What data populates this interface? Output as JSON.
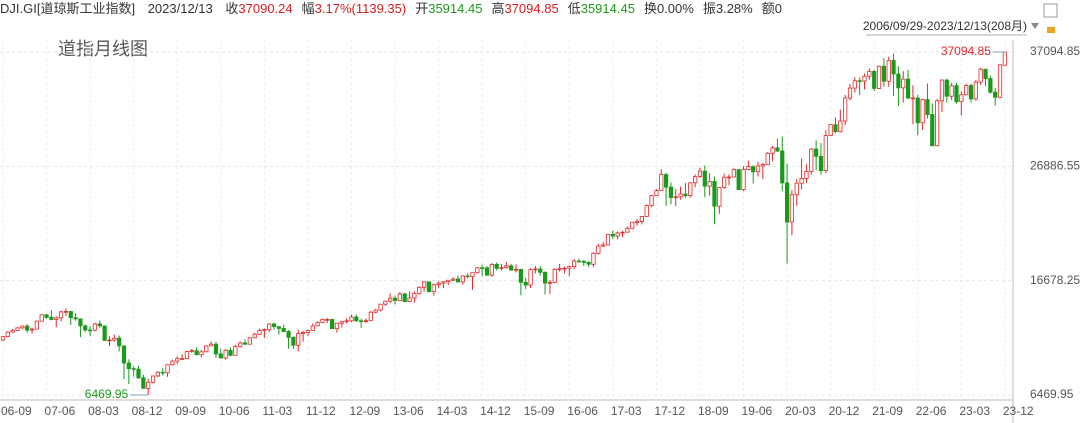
{
  "header": {
    "symbol": "DJI.GI[道琼斯工业指数]",
    "date": "2023/12/13",
    "items": [
      {
        "label": "收",
        "value": "37090.24",
        "color": "#d42020"
      },
      {
        "label": "幅",
        "value": "3.17%(1139.35)",
        "color": "#d42020"
      },
      {
        "label": "开",
        "value": "35914.45",
        "color": "#1a9a1a"
      },
      {
        "label": "高",
        "value": "37094.85",
        "color": "#d42020"
      },
      {
        "label": "低",
        "value": "35914.45",
        "color": "#1a9a1a"
      },
      {
        "label": "换",
        "value": "0.00%",
        "color": "#333333"
      },
      {
        "label": "振",
        "value": "3.28%",
        "color": "#333333"
      },
      {
        "label": "额",
        "value": "0",
        "color": "#333333"
      }
    ],
    "range": "2006/09/29-2023/12/13(208月)"
  },
  "chart_data": {
    "type": "candlestick",
    "title": "道指月线图",
    "up_color": "#e02828",
    "down_color": "#1a9a1a",
    "grid": true,
    "ylim": [
      6469.95,
      37094.85
    ],
    "yticks": [
      37094.85,
      26886.55,
      16678.25,
      6469.95
    ],
    "categories": [
      "06-09",
      null,
      null,
      null,
      null,
      null,
      null,
      null,
      null,
      "07-06",
      null,
      null,
      null,
      null,
      null,
      null,
      null,
      null,
      "08-03",
      null,
      null,
      null,
      null,
      null,
      null,
      null,
      null,
      "08-12",
      null,
      null,
      null,
      null,
      null,
      null,
      null,
      null,
      "09-09",
      null,
      null,
      null,
      null,
      null,
      null,
      null,
      null,
      "10-06",
      null,
      null,
      null,
      null,
      null,
      null,
      null,
      null,
      "11-03",
      null,
      null,
      null,
      null,
      null,
      null,
      null,
      null,
      "11-12",
      null,
      null,
      null,
      null,
      null,
      null,
      null,
      null,
      "12-09",
      null,
      null,
      null,
      null,
      null,
      null,
      null,
      null,
      "13-06",
      null,
      null,
      null,
      null,
      null,
      null,
      null,
      null,
      "14-03",
      null,
      null,
      null,
      null,
      null,
      null,
      null,
      null,
      "14-12",
      null,
      null,
      null,
      null,
      null,
      null,
      null,
      null,
      "15-09",
      null,
      null,
      null,
      null,
      null,
      null,
      null,
      null,
      "16-06",
      null,
      null,
      null,
      null,
      null,
      null,
      null,
      null,
      "17-03",
      null,
      null,
      null,
      null,
      null,
      null,
      null,
      null,
      "17-12",
      null,
      null,
      null,
      null,
      null,
      null,
      null,
      null,
      "18-09",
      null,
      null,
      null,
      null,
      null,
      null,
      null,
      null,
      "19-06",
      null,
      null,
      null,
      null,
      null,
      null,
      null,
      null,
      "20-03",
      null,
      null,
      null,
      null,
      null,
      null,
      null,
      null,
      "20-12",
      null,
      null,
      null,
      null,
      null,
      null,
      null,
      null,
      "21-09",
      null,
      null,
      null,
      null,
      null,
      null,
      null,
      null,
      "22-06",
      null,
      null,
      null,
      null,
      null,
      null,
      null,
      null,
      "23-03",
      null,
      null,
      null,
      null,
      null,
      null,
      null,
      null,
      "23-12"
    ],
    "open": [
      11381,
      11679,
      12081,
      12222,
      12463,
      12622,
      12269,
      12354,
      13063,
      13628,
      13409,
      13212,
      13358,
      13896,
      13930,
      13372,
      13265,
      12650,
      12266,
      12263,
      12820,
      12638,
      11350,
      11378,
      11544,
      10851,
      9325,
      8829,
      8776,
      8001,
      7063,
      7609,
      8168,
      8500,
      8447,
      9172,
      9496,
      9712,
      9713,
      10345,
      10428,
      10067,
      10325,
      10857,
      11009,
      10137,
      9774,
      10466,
      10015,
      10788,
      11118,
      11006,
      11578,
      11892,
      12226,
      12320,
      12811,
      12570,
      12414,
      12143,
      11614,
      10913,
      11955,
      12046,
      12218,
      12633,
      12952,
      13212,
      13214,
      12393,
      12880,
      13009,
      13091,
      13437,
      13096,
      13026,
      13104,
      13861,
      14054,
      14579,
      14840,
      15116,
      14910,
      15500,
      14810,
      15130,
      15546,
      16086,
      16577,
      15699,
      16322,
      16458,
      16581,
      16717,
      16827,
      16563,
      17098,
      17043,
      17391,
      17828,
      17823,
      17165,
      18133,
      17776,
      17841,
      18011,
      17620,
      17690,
      16528,
      16285,
      17664,
      17720,
      17425,
      16466,
      16517,
      17685,
      17774,
      17787,
      17930,
      18432,
      18401,
      18308,
      18142,
      19124,
      19763,
      19864,
      20812,
      20663,
      20941,
      21009,
      21350,
      21891,
      21948,
      22405,
      23377,
      24272,
      24719,
      26149,
      25029,
      24103,
      24163,
      24416,
      24271,
      25415,
      25965,
      26458,
      25116,
      25538,
      23327,
      24999,
      25916,
      25929,
      26593,
      24815,
      26600,
      26864,
      26403,
      26917,
      27046,
      28051,
      28538,
      28256,
      25409,
      21917,
      24346,
      25383,
      25813,
      26428,
      28430,
      27782,
      26502,
      29638,
      30606,
      29983,
      30932,
      32982,
      33875,
      34529,
      34503,
      34935,
      35361,
      33844,
      35820,
      34484,
      36338,
      35132,
      33893,
      34678,
      32977,
      32990,
      30775,
      32845,
      31510,
      28726,
      32733,
      34590,
      33147,
      34086,
      32657,
      33274,
      34098,
      32908,
      34408,
      35560,
      34722,
      33508,
      33053,
      35914.45
    ],
    "high": [
      11727,
      12167,
      12361,
      12529,
      12686,
      12795,
      12488,
      13121,
      13692,
      13692,
      14022,
      13497,
      14000,
      14198,
      13973,
      13780,
      13279,
      12767,
      12622,
      12931,
      13136,
      12657,
      11698,
      11867,
      11791,
      10882,
      9654,
      9026,
      9088,
      8280,
      7925,
      8208,
      8588,
      8877,
      9197,
      9630,
      9918,
      10119,
      10406,
      10580,
      10729,
      10468,
      10907,
      11258,
      11205,
      10594,
      10581,
      10720,
      10948,
      11246,
      11452,
      11625,
      12020,
      12391,
      12419,
      12876,
      12950,
      12596,
      12753,
      12284,
      11717,
      12284,
      12180,
      12317,
      12841,
      13055,
      13290,
      13338,
      13279,
      12898,
      13088,
      13331,
      13653,
      13661,
      13289,
      13305,
      13970,
      14149,
      14585,
      14888,
      15542,
      15340,
      15658,
      15580,
      15709,
      15721,
      16174,
      16588,
      16589,
      16398,
      16588,
      16631,
      16736,
      16978,
      17152,
      17153,
      17350,
      17395,
      17895,
      18103,
      17951,
      18244,
      18289,
      18175,
      18351,
      18144,
      18137,
      17720,
      16933,
      17799,
      17977,
      17985,
      17510,
      16752,
      17790,
      18167,
      17935,
      18016,
      18622,
      18668,
      18534,
      18399,
      19225,
      19987,
      20126,
      20851,
      21169,
      21070,
      21112,
      21535,
      21929,
      22179,
      22420,
      23485,
      24327,
      24876,
      26617,
      26307,
      25449,
      24858,
      25087,
      25403,
      25462,
      26167,
      26770,
      26952,
      26277,
      25980,
      25053,
      26241,
      26155,
      26696,
      26660,
      26908,
      27398,
      26958,
      27306,
      27190,
      28175,
      28702,
      29374,
      29568,
      27102,
      24765,
      25758,
      27581,
      27071,
      28502,
      29199,
      28958,
      30117,
      30637,
      31272,
      31961,
      33259,
      34257,
      34837,
      34849,
      35172,
      35631,
      35510,
      35892,
      36566,
      36679,
      36953,
      35824,
      35372,
      35493,
      34118,
      33272,
      32910,
      34281,
      32504,
      32889,
      34639,
      34712,
      34342,
      34335,
      33572,
      34257,
      34257,
      34589,
      35679,
      35578,
      34979,
      33893,
      35987,
      37094.85
    ],
    "low": [
      11290,
      11653,
      12036,
      12194,
      12363,
      12050,
      11939,
      12354,
      13053,
      13266,
      13148,
      12518,
      13029,
      13522,
      12725,
      13098,
      11634,
      12118,
      11731,
      12160,
      12477,
      11287,
      10827,
      11221,
      10365,
      7882,
      7449,
      8118,
      7909,
      7062,
      6469.95,
      7490,
      8087,
      8221,
      8087,
      9112,
      9252,
      9678,
      9677,
      10236,
      10023,
      9836,
      10293,
      10847,
      9774,
      9758,
      9614,
      9936,
      9998,
      10711,
      10929,
      11008,
      11520,
      11827,
      11555,
      12093,
      12300,
      11862,
      12068,
      10604,
      10597,
      10362,
      11231,
      11735,
      12184,
      12629,
      12884,
      12911,
      12376,
      12035,
      12492,
      12855,
      12977,
      13006,
      12471,
      12883,
      13104,
      13784,
      13937,
      14434,
      14700,
      14551,
      14910,
      14760,
      14777,
      14719,
      15440,
      15703,
      15617,
      15340,
      16015,
      16015,
      16300,
      16659,
      16559,
      16333,
      16901,
      15855,
      17317,
      17067,
      17136,
      17037,
      17585,
      17593,
      17755,
      17575,
      17399,
      15370,
      15942,
      16013,
      17330,
      17138,
      15451,
      15504,
      16451,
      17484,
      17331,
      17063,
      17713,
      18285,
      17992,
      17883,
      17888,
      19019,
      19677,
      19830,
      20412,
      20379,
      20553,
      20994,
      21279,
      21600,
      21709,
      22380,
      23242,
      24242,
      24700,
      23360,
      23509,
      23344,
      23908,
      24077,
      24084,
      25010,
      25848,
      24122,
      24268,
      21713,
      22639,
      24884,
      25208,
      25900,
      24775,
      24680,
      26532,
      25339,
      25978,
      25743,
      27000,
      27325,
      28169,
      24681,
      18214,
      20735,
      23361,
      24843,
      25391,
      26137,
      26537,
      26143,
      26277,
      29611,
      29856,
      29900,
      30548,
      32787,
      33473,
      33271,
      33741,
      34613,
      33613,
      33785,
      34006,
      33991,
      33150,
      32273,
      32578,
      32913,
      30636,
      29653,
      30143,
      31158,
      28715,
      28660,
      31727,
      32573,
      32812,
      32500,
      31429,
      33235,
      32586,
      32741,
      34143,
      34029,
      33379,
      32327,
      32984,
      35914.45
    ],
    "close": [
      11679,
      12081,
      12222,
      12463,
      12622,
      12269,
      12354,
      13063,
      13628,
      13409,
      13212,
      13358,
      13896,
      13930,
      13372,
      13265,
      12650,
      12266,
      12263,
      12820,
      12638,
      11350,
      11378,
      11544,
      10851,
      9325,
      8829,
      8776,
      8001,
      7063,
      7609,
      8168,
      8500,
      8447,
      9172,
      9496,
      9712,
      9713,
      10345,
      10428,
      10067,
      10325,
      10857,
      11009,
      10137,
      9774,
      10466,
      10015,
      10788,
      11118,
      11006,
      11578,
      11892,
      12226,
      12320,
      12811,
      12570,
      12414,
      12143,
      11614,
      10913,
      11955,
      12046,
      12218,
      12633,
      12952,
      13212,
      13214,
      12393,
      12880,
      13009,
      13091,
      13437,
      13096,
      13026,
      13104,
      13861,
      14054,
      14579,
      14840,
      15116,
      14910,
      15500,
      14810,
      15130,
      15546,
      16086,
      16577,
      15699,
      16322,
      16458,
      16581,
      16717,
      16827,
      16563,
      17098,
      17043,
      17391,
      17828,
      17823,
      17165,
      18133,
      17776,
      17841,
      18011,
      17620,
      17690,
      16528,
      16285,
      17664,
      17720,
      17425,
      16466,
      16517,
      17685,
      17774,
      17787,
      17930,
      18432,
      18401,
      18308,
      18142,
      19124,
      19763,
      19864,
      20812,
      20663,
      20941,
      21009,
      21350,
      21891,
      21948,
      22405,
      23377,
      24272,
      24719,
      26149,
      25029,
      24103,
      24163,
      24416,
      24271,
      25415,
      25965,
      26458,
      25116,
      25538,
      23327,
      24999,
      25916,
      25929,
      26593,
      24815,
      26600,
      26864,
      26403,
      26917,
      27046,
      28051,
      28538,
      28256,
      25409,
      21917,
      24346,
      25383,
      25813,
      26428,
      28430,
      27782,
      26502,
      29638,
      30606,
      29983,
      30932,
      32982,
      33875,
      34529,
      34503,
      34935,
      35361,
      33844,
      35820,
      34484,
      36338,
      35132,
      33893,
      34678,
      32977,
      32990,
      30775,
      32845,
      31510,
      28726,
      32733,
      34590,
      33147,
      34086,
      32657,
      33274,
      34098,
      32908,
      34408,
      35560,
      34722,
      33508,
      33053,
      35951,
      37090.24
    ]
  }
}
